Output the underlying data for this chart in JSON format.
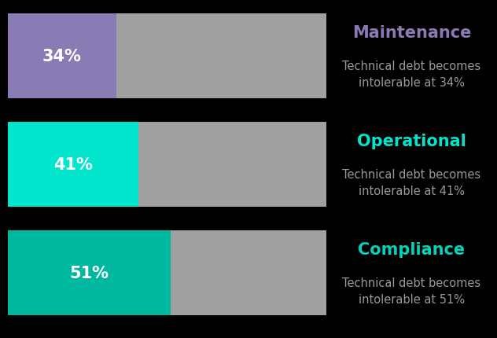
{
  "bars": [
    {
      "label": "Maintenance",
      "value": 34,
      "bar_color": "#8B7BB5",
      "label_color": "#8B7BB5",
      "text_color": "#ffffff",
      "subtitle": "Technical debt becomes\nintolerable at 34%"
    },
    {
      "label": "Operational",
      "value": 41,
      "bar_color": "#00E5CC",
      "label_color": "#00E5CC",
      "text_color": "#ffffff",
      "subtitle": "Technical debt becomes\nintolerable at 41%"
    },
    {
      "label": "Compliance",
      "value": 51,
      "bar_color": "#00B8A0",
      "label_color": "#00D4BB",
      "text_color": "#ffffff",
      "subtitle": "Technical debt becomes\nintolerable at 51%"
    }
  ],
  "remainder_color": "#A0A0A0",
  "background_color": "#000000",
  "subtitle_color": "#999999",
  "subtitle_fontsize": 10.5,
  "label_fontsize": 15,
  "value_fontsize": 15,
  "max_value": 100
}
